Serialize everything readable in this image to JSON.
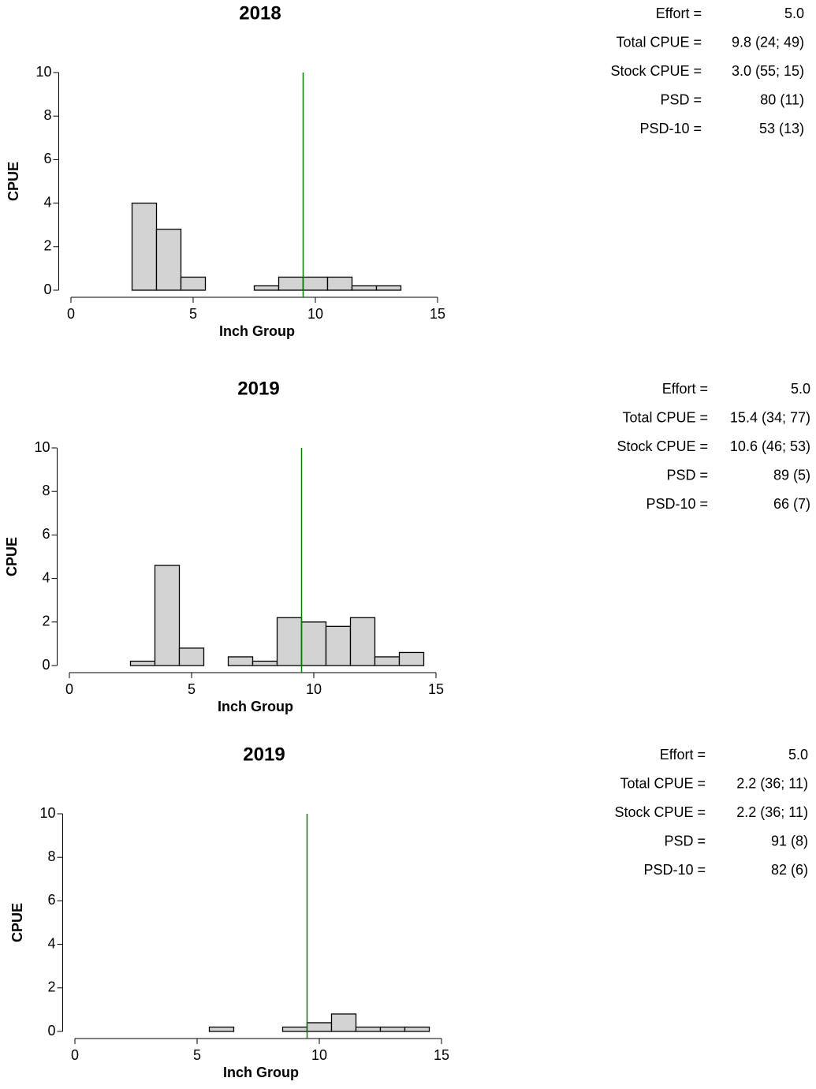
{
  "chart_data": [
    {
      "type": "histogram",
      "title": "2018",
      "x_label": "Inch Group",
      "y_label": "CPUE",
      "bins": [
        -0.5,
        0.5,
        1.5,
        2.5,
        3.5,
        4.5,
        5.5,
        6.5,
        7.5,
        8.5,
        9.5,
        10.5,
        11.5,
        12.5,
        13.5,
        14.5,
        15.5
      ],
      "values": [
        0,
        0,
        0,
        4.0,
        2.8,
        0.6,
        0,
        0,
        0.2,
        0.6,
        0.6,
        0.6,
        0.2,
        0.2,
        0,
        0
      ],
      "color": "#d3d3d3",
      "xlim": [
        -0.5,
        15.5
      ],
      "ylim": [
        0,
        10
      ],
      "xticks": [
        0,
        5,
        10,
        15
      ],
      "yticks": [
        0,
        2,
        4,
        6,
        8,
        10
      ],
      "vline": {
        "x": 9.5,
        "color": "#008000"
      },
      "annotations": [
        {
          "label": "Effort =",
          "value": "5.0"
        },
        {
          "label": "Total CPUE =",
          "value": "9.8 (24; 49)"
        },
        {
          "label": "Stock CPUE =",
          "value": "3.0 (55; 15)"
        },
        {
          "label": "PSD =",
          "value": "80 (11)"
        },
        {
          "label": "PSD-10 =",
          "value": "53 (13)"
        }
      ]
    },
    {
      "type": "histogram",
      "title": "2019",
      "x_label": "Inch Group",
      "y_label": "CPUE",
      "bins": [
        -0.5,
        0.5,
        1.5,
        2.5,
        3.5,
        4.5,
        5.5,
        6.5,
        7.5,
        8.5,
        9.5,
        10.5,
        11.5,
        12.5,
        13.5,
        14.5,
        15.5
      ],
      "values": [
        0,
        0,
        0,
        0.2,
        4.6,
        0.8,
        0,
        0.4,
        0.2,
        2.2,
        2.0,
        1.8,
        2.2,
        0.4,
        0.6,
        0
      ],
      "color": "#d3d3d3",
      "xlim": [
        -0.5,
        15.5
      ],
      "ylim": [
        0,
        10
      ],
      "xticks": [
        0,
        5,
        10,
        15
      ],
      "yticks": [
        0,
        2,
        4,
        6,
        8,
        10
      ],
      "vline": {
        "x": 9.5,
        "color": "#008000"
      },
      "annotations": [
        {
          "label": "Effort =",
          "value": "5.0"
        },
        {
          "label": "Total CPUE =",
          "value": "15.4 (34; 77)"
        },
        {
          "label": "Stock CPUE =",
          "value": "10.6 (46; 53)"
        },
        {
          "label": "PSD =",
          "value": "89 (5)"
        },
        {
          "label": "PSD-10 =",
          "value": "66 (7)"
        }
      ]
    },
    {
      "type": "histogram",
      "title": "2019",
      "x_label": "Inch Group",
      "y_label": "CPUE",
      "bins": [
        -0.5,
        0.5,
        1.5,
        2.5,
        3.5,
        4.5,
        5.5,
        6.5,
        7.5,
        8.5,
        9.5,
        10.5,
        11.5,
        12.5,
        13.5,
        14.5,
        15.5
      ],
      "values": [
        0,
        0,
        0,
        0,
        0,
        0,
        0.2,
        0,
        0,
        0.2,
        0.4,
        0.8,
        0.2,
        0.2,
        0.2,
        0
      ],
      "color": "#d3d3d3",
      "xlim": [
        -0.5,
        15.5
      ],
      "ylim": [
        0,
        10
      ],
      "xticks": [
        0,
        5,
        10,
        15
      ],
      "yticks": [
        0,
        2,
        4,
        6,
        8,
        10
      ],
      "vline": {
        "x": 9.5,
        "color": "#008000"
      },
      "annotations": [
        {
          "label": "Effort =",
          "value": "5.0"
        },
        {
          "label": "Total CPUE =",
          "value": "2.2 (36; 11)"
        },
        {
          "label": "Stock CPUE =",
          "value": "2.2 (36; 11)"
        },
        {
          "label": "PSD =",
          "value": "91 (8)"
        },
        {
          "label": "PSD-10 =",
          "value": "82 (6)"
        }
      ]
    }
  ]
}
